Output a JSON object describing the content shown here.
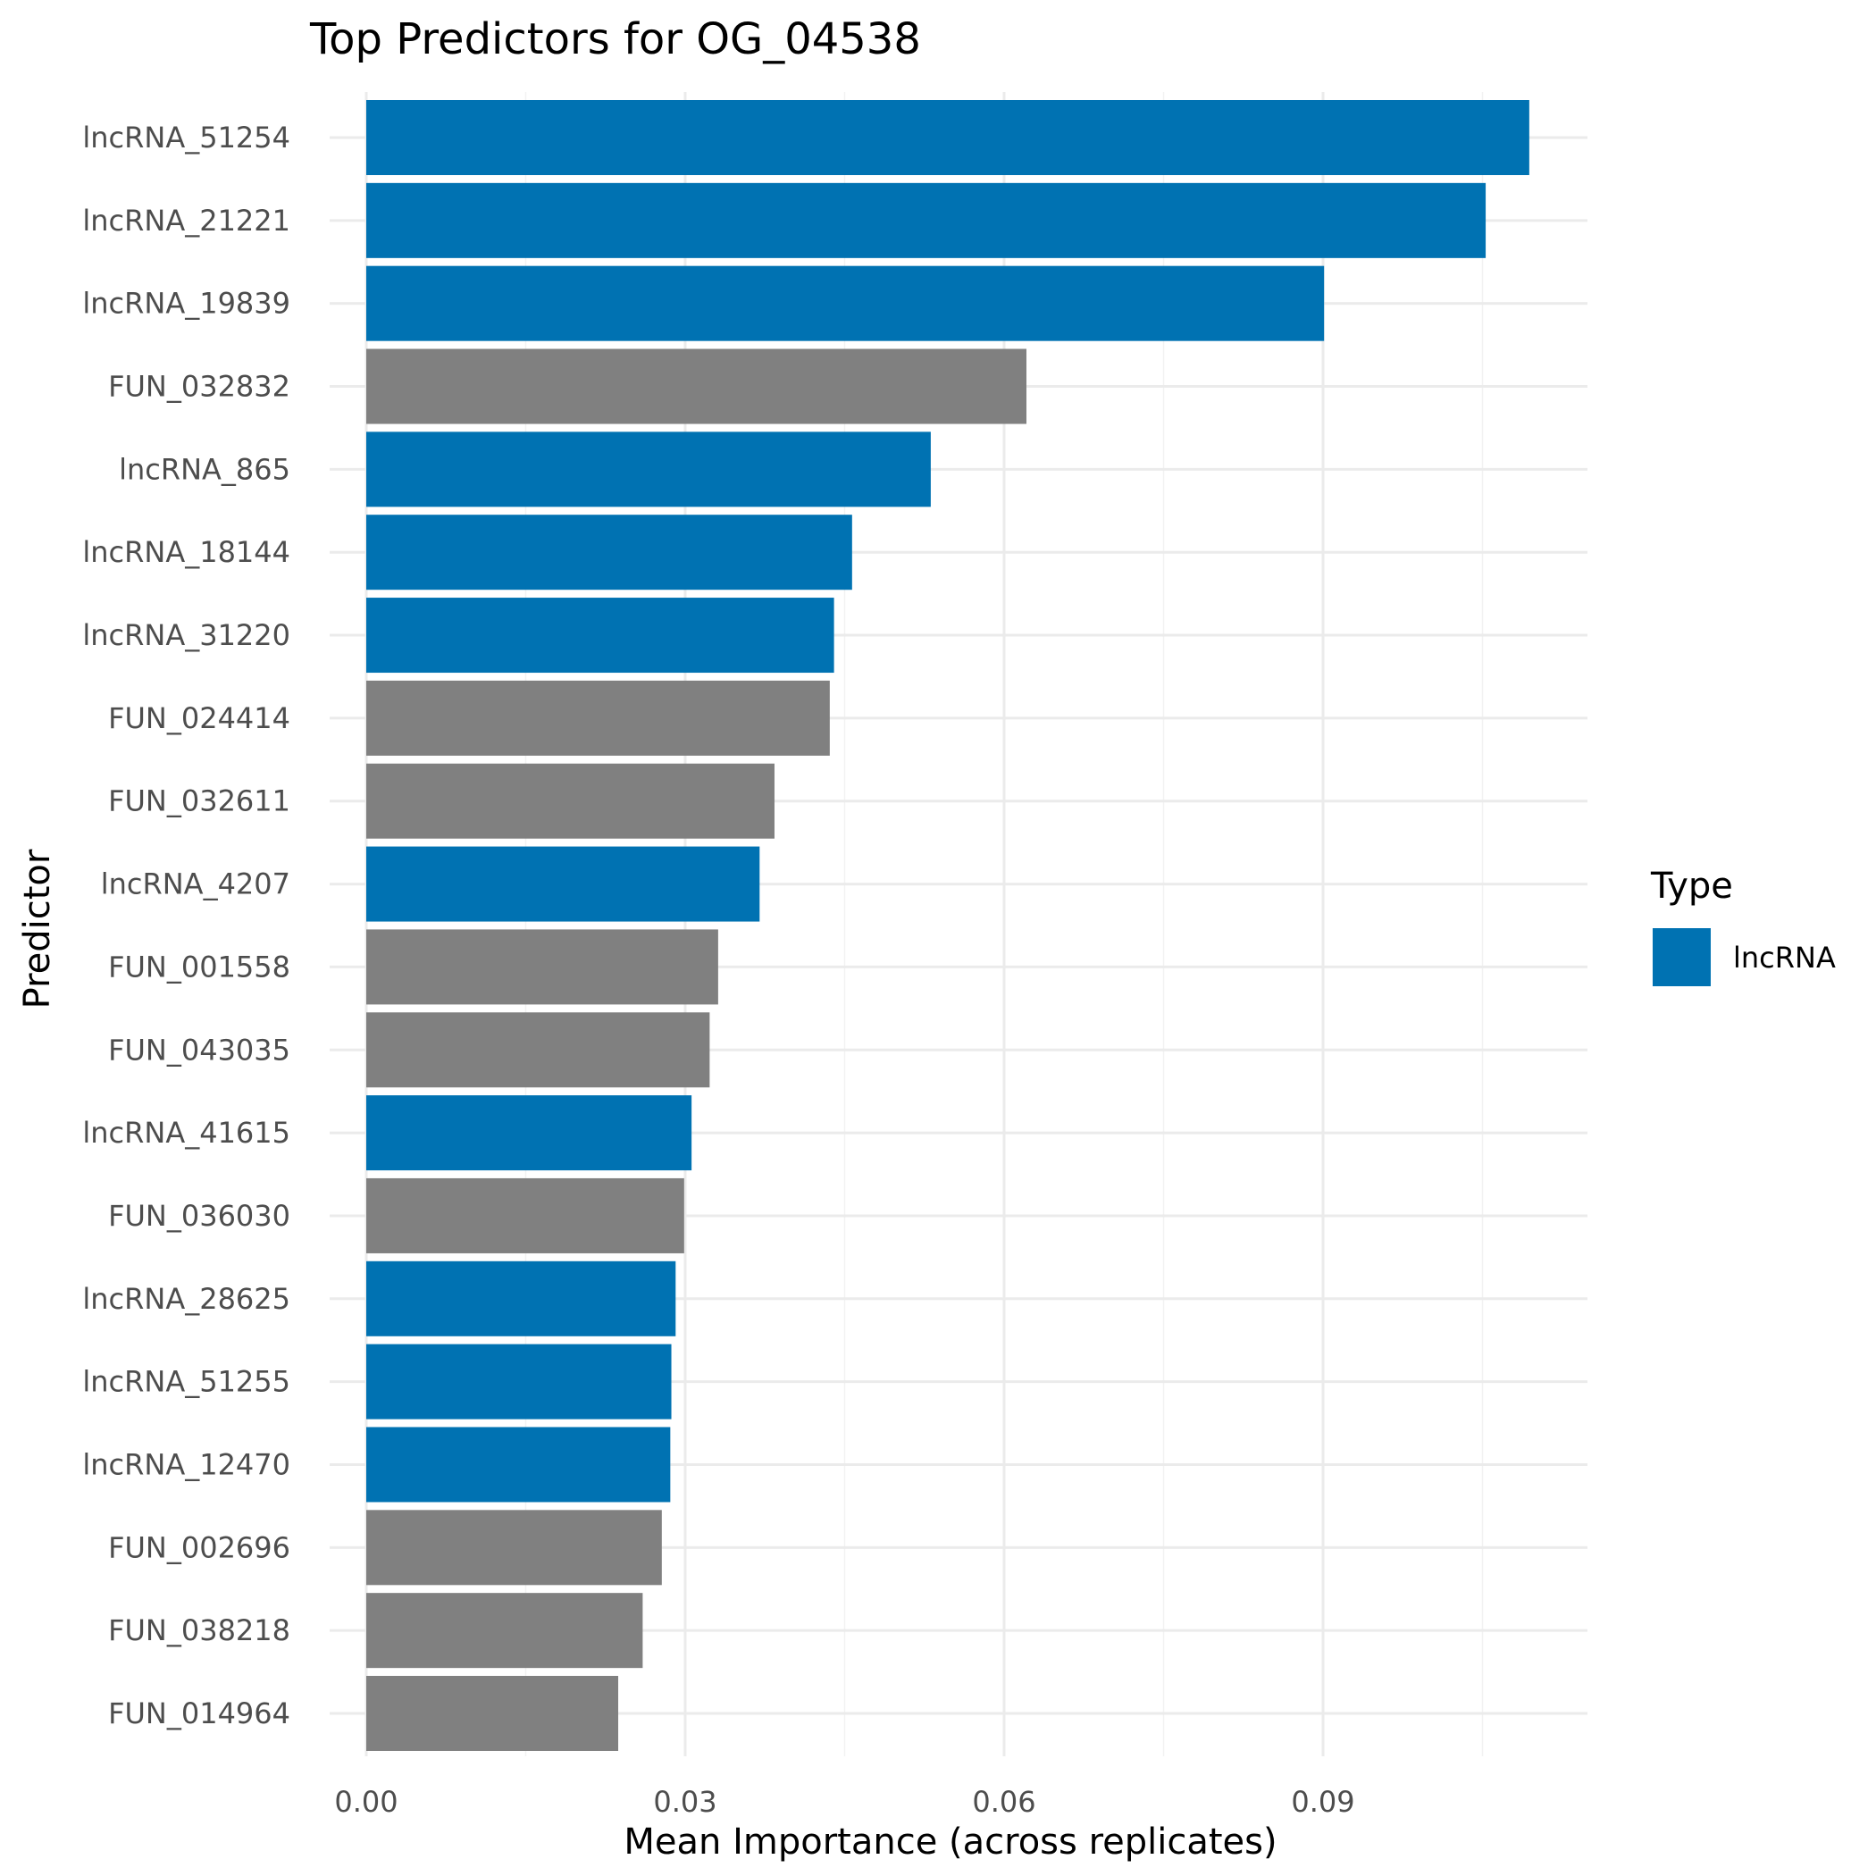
{
  "chart_data": {
    "type": "bar",
    "orientation": "horizontal",
    "title": "Top Predictors for OG_04538",
    "xlabel": "Mean Importance (across replicates)",
    "ylabel": "Predictor",
    "xlim": [
      0,
      0.115
    ],
    "xticks": [
      0.0,
      0.03,
      0.06,
      0.09
    ],
    "xtick_labels": [
      "0.00",
      "0.03",
      "0.06",
      "0.09"
    ],
    "grid": true,
    "legend": {
      "title": "Type",
      "placement": "right",
      "entries": [
        {
          "label": "lncRNA",
          "color": "#0072B2"
        }
      ]
    },
    "colors": {
      "lncRNA": "#0072B2",
      "other": "#808080"
    },
    "categories": [
      "lncRNA_51254",
      "lncRNA_21221",
      "lncRNA_19839",
      "FUN_032832",
      "lncRNA_865",
      "lncRNA_18144",
      "lncRNA_31220",
      "FUN_024414",
      "FUN_032611",
      "lncRNA_4207",
      "FUN_001558",
      "FUN_043035",
      "lncRNA_41615",
      "FUN_036030",
      "lncRNA_28625",
      "lncRNA_51255",
      "lncRNA_12470",
      "FUN_002696",
      "FUN_038218",
      "FUN_014964"
    ],
    "values": [
      0.1094,
      0.1053,
      0.0901,
      0.0621,
      0.0531,
      0.0457,
      0.044,
      0.0436,
      0.0384,
      0.037,
      0.0331,
      0.0323,
      0.0306,
      0.0299,
      0.0291,
      0.0287,
      0.0286,
      0.0278,
      0.026,
      0.0237
    ],
    "types": [
      "lncRNA",
      "lncRNA",
      "lncRNA",
      "other",
      "lncRNA",
      "lncRNA",
      "lncRNA",
      "other",
      "other",
      "lncRNA",
      "other",
      "other",
      "lncRNA",
      "other",
      "lncRNA",
      "lncRNA",
      "lncRNA",
      "other",
      "other",
      "other"
    ]
  }
}
